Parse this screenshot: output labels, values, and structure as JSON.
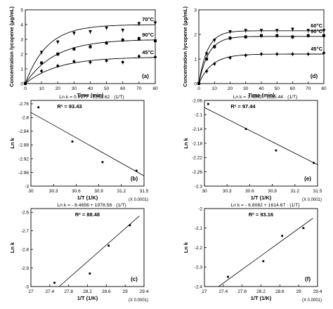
{
  "chart_data": [
    {
      "id": "a",
      "type": "scatter",
      "panel_label": "(a)",
      "xlabel": "Time (min)",
      "ylabel": "Concentration lycopene (µg/mL)",
      "xlim": [
        0,
        80
      ],
      "ylim": [
        0,
        5
      ],
      "xticks": [
        "0",
        "10",
        "20",
        "30",
        "40",
        "50",
        "60",
        "70",
        "80"
      ],
      "yticks": [
        "0",
        "1",
        "2",
        "3",
        "4",
        "5"
      ],
      "series": [
        {
          "name": "70°C",
          "marker": "triangle-down",
          "points": [
            [
              0,
              0
            ],
            [
              10,
              2.1
            ],
            [
              20,
              2.8
            ],
            [
              30,
              3.4
            ],
            [
              40,
              3.5
            ],
            [
              50,
              3.75
            ],
            [
              60,
              3.6
            ],
            [
              70,
              4.05
            ],
            [
              80,
              4.1
            ]
          ],
          "fit": {
            "a": 4.0,
            "k": 0.075
          }
        },
        {
          "name": "90°C",
          "marker": "square",
          "points": [
            [
              0,
              0
            ],
            [
              10,
              1.4
            ],
            [
              20,
              2.0
            ],
            [
              30,
              2.35
            ],
            [
              40,
              2.5
            ],
            [
              50,
              2.75
            ],
            [
              60,
              2.95
            ],
            [
              70,
              3.05
            ],
            [
              80,
              2.9
            ]
          ],
          "fit": {
            "a": 3.0,
            "k": 0.055
          }
        },
        {
          "name": "45°C",
          "marker": "diamond",
          "points": [
            [
              0,
              0
            ],
            [
              10,
              0.85
            ],
            [
              20,
              1.2
            ],
            [
              30,
              1.5
            ],
            [
              40,
              1.45
            ],
            [
              50,
              1.55
            ],
            [
              60,
              1.45
            ],
            [
              70,
              1.85
            ],
            [
              80,
              1.8
            ]
          ],
          "fit": {
            "a": 1.8,
            "k": 0.05
          }
        }
      ]
    },
    {
      "id": "d",
      "type": "scatter",
      "panel_label": "(d)",
      "xlabel": "Time (min)",
      "ylabel": "Concentration lycopene (µg/mL)",
      "xlim": [
        0,
        80
      ],
      "ylim": [
        0,
        3
      ],
      "xticks": [
        "0",
        "10",
        "20",
        "30",
        "40",
        "50",
        "60",
        "70",
        "80"
      ],
      "yticks": [
        "0",
        "1",
        "2",
        "3"
      ],
      "series": [
        {
          "name": "60°C",
          "marker": "triangle-down",
          "points": [
            [
              0,
              0
            ],
            [
              5,
              1.2
            ],
            [
              10,
              1.75
            ],
            [
              20,
              2.1
            ],
            [
              30,
              2.15
            ],
            [
              40,
              2.15
            ],
            [
              50,
              2.15
            ],
            [
              60,
              2.2
            ],
            [
              70,
              2.15
            ],
            [
              80,
              2.15
            ]
          ],
          "fit": {
            "a": 2.15,
            "k": 0.18
          }
        },
        {
          "name": "90°C",
          "marker": "square",
          "points": [
            [
              0,
              0
            ],
            [
              5,
              1.0
            ],
            [
              10,
              1.5
            ],
            [
              20,
              1.85
            ],
            [
              30,
              1.9
            ],
            [
              40,
              1.95
            ],
            [
              50,
              1.95
            ],
            [
              60,
              1.9
            ],
            [
              70,
              1.95
            ],
            [
              80,
              1.95
            ]
          ],
          "fit": {
            "a": 1.92,
            "k": 0.16
          }
        },
        {
          "name": "45°C",
          "marker": "diamond",
          "points": [
            [
              0,
              0
            ],
            [
              5,
              0.5
            ],
            [
              10,
              0.8
            ],
            [
              20,
              1.05
            ],
            [
              30,
              1.15
            ],
            [
              40,
              1.2
            ],
            [
              50,
              1.2
            ],
            [
              60,
              1.2
            ],
            [
              70,
              1.2
            ],
            [
              80,
              1.25
            ]
          ],
          "fit": {
            "a": 1.2,
            "k": 0.12
          }
        }
      ]
    },
    {
      "id": "b",
      "type": "scatter",
      "panel_label": "(b)",
      "equation": "Ln k = 0.9977 - 1262.62 · (1/T)",
      "r2": "R² = 93.43",
      "xlabel": "1/T (1/K)",
      "ylabel": "Ln k",
      "xscale_note": "(X 0.0001)",
      "xlim": [
        30,
        31.5
      ],
      "ylim": [
        -3.0,
        -2.75
      ],
      "xticks": [
        "30",
        "30.3",
        "30.6",
        "30.9",
        "31.2",
        "31.5"
      ],
      "xtick_values": [
        30,
        30.3,
        30.6,
        30.9,
        31.2,
        31.5
      ],
      "yticks": [
        "-2.76",
        "-2.8",
        "-2.84",
        "-2.88",
        "-2.92",
        "-2.96",
        "-3"
      ],
      "ytick_values": [
        -2.76,
        -2.8,
        -2.84,
        -2.88,
        -2.92,
        -2.96,
        -3.0
      ],
      "points": [
        [
          30.1,
          -2.77
        ],
        [
          30.55,
          -2.87
        ],
        [
          30.95,
          -2.93
        ],
        [
          31.4,
          -2.955
        ]
      ],
      "fit_line": [
        [
          30.0,
          -2.785
        ],
        [
          31.5,
          -2.97
        ]
      ]
    },
    {
      "id": "e",
      "type": "scatter",
      "panel_label": "(e)",
      "equation": "Ln k = 1.4842 - 1185.44 · (1/T)",
      "r2": "R² = 97.44",
      "xlabel": "1/T (1/K)",
      "ylabel": "Ln k",
      "xscale_note": "(X 0.0001)",
      "xlim": [
        30,
        31.5
      ],
      "ylim": [
        -2.3,
        -2.06
      ],
      "xticks": [
        "30",
        "30.3",
        "30.6",
        "30.9",
        "31.2",
        "31.5"
      ],
      "xtick_values": [
        30,
        30.3,
        30.6,
        30.9,
        31.2,
        31.5
      ],
      "yticks": [
        "-2.06",
        "-2.1",
        "-2.14",
        "-2.18",
        "-2.22",
        "-2.26",
        "-2.3"
      ],
      "ytick_values": [
        -2.06,
        -2.1,
        -2.14,
        -2.18,
        -2.22,
        -2.26,
        -2.3
      ],
      "points": [
        [
          30.05,
          -2.07
        ],
        [
          30.55,
          -2.14
        ],
        [
          30.95,
          -2.2
        ],
        [
          31.45,
          -2.235
        ]
      ],
      "fit_line": [
        [
          30.0,
          -2.08
        ],
        [
          31.5,
          -2.24
        ]
      ]
    },
    {
      "id": "c",
      "type": "scatter",
      "panel_label": "(c)",
      "equation": "Ln k = - 8.4656 + 1978.58 · (1/T)",
      "r2": "R² = 88.48",
      "xlabel": "1/T (1/K)",
      "ylabel": "Ln k",
      "xscale_note": "(X 0.0001)",
      "xlim": [
        27,
        29.4
      ],
      "ylim": [
        -3.0,
        -2.58
      ],
      "xticks": [
        "27",
        "27.4",
        "27.8",
        "28.2",
        "28.6",
        "29",
        "29.4"
      ],
      "xtick_values": [
        27,
        27.4,
        27.8,
        28.2,
        28.6,
        29,
        29.4
      ],
      "yticks": [
        "-2.6",
        "-2.7",
        "-2.8",
        "-2.9",
        "-3"
      ],
      "ytick_values": [
        -2.6,
        -2.7,
        -2.8,
        -2.9,
        -3.0
      ],
      "points": [
        [
          27.5,
          -2.98
        ],
        [
          28.25,
          -2.93
        ],
        [
          28.65,
          -2.78
        ],
        [
          29.1,
          -2.67
        ]
      ],
      "fit_line": [
        [
          27.6,
          -3.0
        ],
        [
          29.3,
          -2.62
        ]
      ]
    },
    {
      "id": "f",
      "type": "scatter",
      "panel_label": "(f)",
      "equation": "Ln k = - 6.8082 + 1614.67 · (1/T)",
      "r2": "R² = 93.16",
      "xlabel": "1/T (1/K)",
      "ylabel": "Ln k",
      "xscale_note": "(X 0.0001)",
      "xlim": [
        27,
        29.4
      ],
      "ylim": [
        -2.4,
        -2.0
      ],
      "xticks": [
        "27",
        "27.4",
        "27.8",
        "28.2",
        "28.6",
        "29",
        "29.4"
      ],
      "xtick_values": [
        27,
        27.4,
        27.8,
        28.2,
        28.6,
        29,
        29.4
      ],
      "yticks": [
        "-2",
        "-2.1",
        "-2.2",
        "-2.3",
        "-2.4"
      ],
      "ytick_values": [
        -2.0,
        -2.1,
        -2.2,
        -2.3,
        -2.4
      ],
      "points": [
        [
          27.5,
          -2.35
        ],
        [
          28.25,
          -2.27
        ],
        [
          28.65,
          -2.14
        ],
        [
          29.1,
          -2.1
        ]
      ],
      "fit_line": [
        [
          27.3,
          -2.4
        ],
        [
          29.3,
          -2.05
        ]
      ]
    }
  ]
}
